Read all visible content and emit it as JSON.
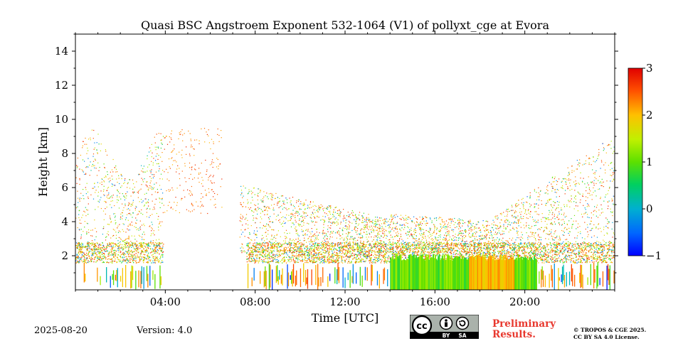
{
  "chart_data": {
    "type": "heatmap",
    "title": "Quasi BSC Angstroem Exponent 532-1064 (V1) of pollyxt_cge at Evora",
    "xlabel": "Time [UTC]",
    "ylabel": "Height [km]",
    "xlim_hours": [
      0,
      24
    ],
    "ylim_km": [
      0,
      15
    ],
    "x_tick_labels": [
      "04:00",
      "08:00",
      "12:00",
      "16:00",
      "20:00"
    ],
    "y_tick_labels": [
      "2",
      "4",
      "6",
      "8",
      "10",
      "12",
      "14"
    ],
    "colorbar": {
      "range": [
        -1,
        3
      ],
      "tick_labels": [
        "−1",
        "0",
        "1",
        "2",
        "3"
      ],
      "colormap": "jet"
    },
    "grid": false
  },
  "footer": {
    "date": "2025-08-20",
    "version": "Version: 4.0",
    "preliminary_line1": "Preliminary",
    "preliminary_line2": "Results.",
    "license_line1": "© TROPOS & CGE 2025.",
    "license_line2": "CC BY SA 4.0 License.",
    "cc_label": "cc",
    "by_label": "BY",
    "sa_label": "SA"
  },
  "colors": {
    "prelim": "#e8382e"
  }
}
